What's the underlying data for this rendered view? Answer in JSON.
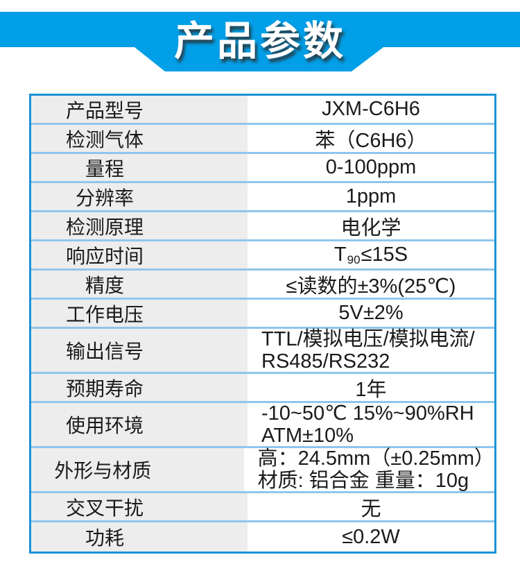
{
  "banner": {
    "title": "产品参数",
    "bg_color": "#019FE7",
    "text_color": "#ffffff"
  },
  "table": {
    "colors": {
      "label_bg": "#EDEDED",
      "value_bg": "#FFFFFF",
      "outer_border": "#1B93D6",
      "row_divider": "#8FC6EB",
      "text": "#1A1A1A"
    },
    "rows": [
      {
        "label": "产品型号",
        "value": "JXM-C6H6"
      },
      {
        "label": "检测气体",
        "value": "苯（C6H6）"
      },
      {
        "label": "量程",
        "value": "0-100ppm"
      },
      {
        "label": "分辨率",
        "value": "1ppm"
      },
      {
        "label": "检测原理",
        "value": "电化学"
      },
      {
        "label": "响应时间",
        "value_parts": {
          "base": "T",
          "sub": "90",
          "rest": "≤15S"
        }
      },
      {
        "label": "精度",
        "value": "≤读数的±3%(25℃)"
      },
      {
        "label": "工作电压",
        "value": "5V±2%"
      },
      {
        "label": "输出信号",
        "lines": [
          "TTL/模拟电压/模拟电流/",
          "RS485/RS232"
        ]
      },
      {
        "label": "预期寿命",
        "value": "1年"
      },
      {
        "label": "使用环境",
        "lines": [
          "-10~50℃ 15%~90%RH",
          "ATM±10%"
        ]
      },
      {
        "label": "外形与材质",
        "lines": [
          "高：24.5mm（±0.25mm）",
          "材质: 铝合金 重量：10g"
        ]
      },
      {
        "label": "交叉干扰",
        "value": "无"
      },
      {
        "label": "功耗",
        "value": "≤0.2W"
      }
    ]
  }
}
